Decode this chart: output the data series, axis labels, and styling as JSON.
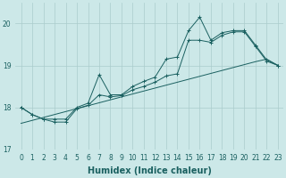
{
  "xlabel": "Humidex (Indice chaleur)",
  "background_color": "#cce8e8",
  "grid_color": "#aacccc",
  "line_color": "#1a6060",
  "x_data": [
    0,
    1,
    2,
    3,
    4,
    5,
    6,
    7,
    8,
    9,
    10,
    11,
    12,
    13,
    14,
    15,
    16,
    17,
    18,
    19,
    20,
    21,
    22,
    23
  ],
  "y_upper": [
    18.0,
    17.83,
    17.72,
    17.72,
    17.72,
    18.0,
    18.1,
    18.78,
    18.3,
    18.3,
    18.5,
    18.62,
    18.72,
    19.15,
    19.2,
    19.83,
    20.15,
    19.6,
    19.78,
    19.83,
    19.83,
    19.48,
    19.13,
    19.0
  ],
  "y_lower": [
    18.0,
    17.83,
    17.72,
    17.65,
    17.65,
    17.97,
    18.05,
    18.3,
    18.25,
    18.28,
    18.42,
    18.5,
    18.6,
    18.75,
    18.8,
    19.6,
    19.6,
    19.55,
    19.72,
    19.8,
    19.8,
    19.45,
    19.1,
    19.0
  ],
  "y_trend": [
    17.62,
    17.69,
    17.76,
    17.83,
    17.9,
    17.97,
    18.04,
    18.11,
    18.18,
    18.25,
    18.32,
    18.39,
    18.46,
    18.53,
    18.6,
    18.67,
    18.74,
    18.81,
    18.88,
    18.95,
    19.02,
    19.09,
    19.15,
    19.0
  ],
  "ylim": [
    17.0,
    20.5
  ],
  "yticks": [
    17,
    18,
    19,
    20
  ],
  "xlim": [
    -0.5,
    23.5
  ],
  "xticks": [
    0,
    1,
    2,
    3,
    4,
    5,
    6,
    7,
    8,
    9,
    10,
    11,
    12,
    13,
    14,
    15,
    16,
    17,
    18,
    19,
    20,
    21,
    22,
    23
  ],
  "xlabel_fontsize": 7,
  "tick_fontsize": 5.5
}
